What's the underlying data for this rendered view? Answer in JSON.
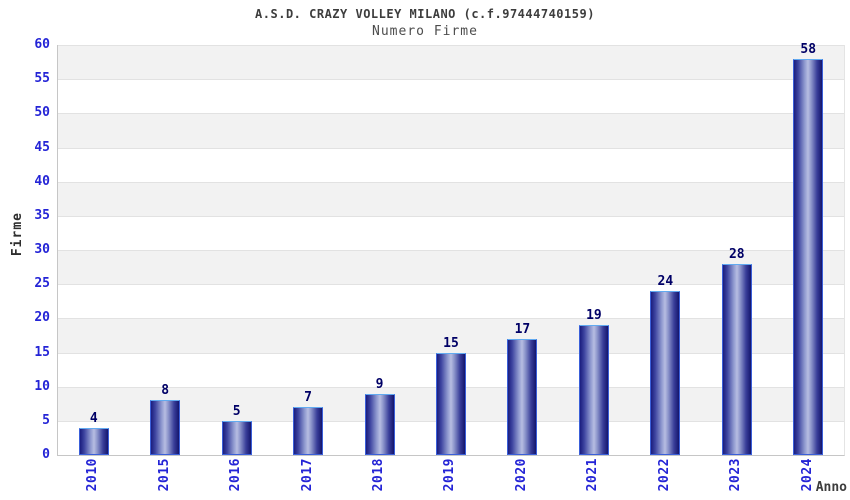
{
  "header": {
    "title": "A.S.D. CRAZY VOLLEY MILANO (c.f.97444740159)",
    "subtitle": "Numero Firme"
  },
  "chart_data": {
    "type": "bar",
    "title": "A.S.D. CRAZY VOLLEY MILANO (c.f.97444740159)",
    "subtitle": "Numero Firme",
    "categories": [
      "2010",
      "2015",
      "2016",
      "2017",
      "2018",
      "2019",
      "2020",
      "2021",
      "2022",
      "2023",
      "2024"
    ],
    "values": [
      4,
      8,
      5,
      7,
      9,
      15,
      17,
      19,
      24,
      28,
      58
    ],
    "xlabel": "Anno",
    "ylabel": "Firme",
    "ylim": [
      0,
      60
    ],
    "ytick_step": 5,
    "grid": "horizontal gridlines with alternating gray/white bands",
    "legend": "none",
    "bar_value_labels_shown": true,
    "colors": {
      "bar_gradient_dark": "#1b1d7e",
      "bar_gradient_light": "#b7bde2",
      "bar_border": "#3a5fd9",
      "bar_border_top": "#61aaf0",
      "axis_tick_label": "#2424d6",
      "bar_value_label": "#000066",
      "band_gray": "#f2f2f2",
      "gridline": "#e2e2e2",
      "axis_line": "#c6c6c6",
      "title_text": "#3d3d3d",
      "background": "#ffffff"
    }
  }
}
